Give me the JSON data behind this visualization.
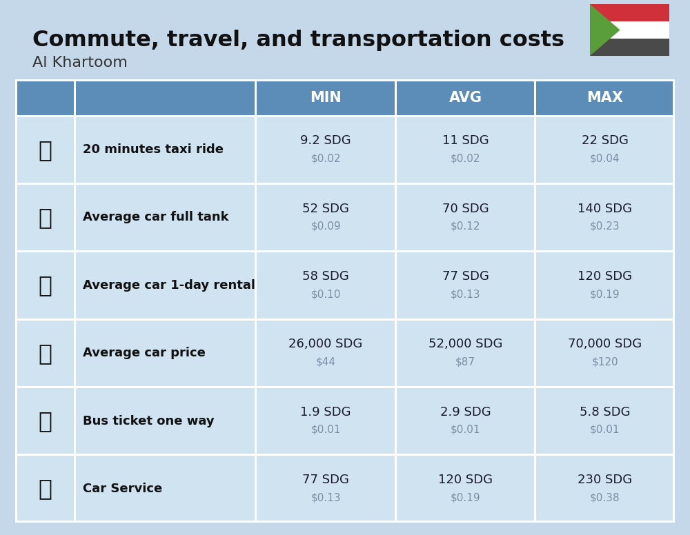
{
  "title": "Commute, travel, and transportation costs",
  "subtitle": "Al Khartoom",
  "bg_color": "#C5D8EA",
  "header_bg": "#5B8DB8",
  "header_text_color": "#FFFFFF",
  "row_bg": "#D0E3F0",
  "cell_border_color": "#FFFFFF",
  "col_headers": [
    "MIN",
    "AVG",
    "MAX"
  ],
  "flag_red": "#D0303A",
  "flag_white": "#FFFFFF",
  "flag_black": "#4A4A4A",
  "flag_green": "#5A9E3A",
  "rows": [
    {
      "label": "20 minutes taxi ride",
      "icon": "🚕",
      "min_sdg": "9.2 SDG",
      "min_usd": "$0.02",
      "avg_sdg": "11 SDG",
      "avg_usd": "$0.02",
      "max_sdg": "22 SDG",
      "max_usd": "$0.04"
    },
    {
      "label": "Average car full tank",
      "icon": "⛽",
      "min_sdg": "52 SDG",
      "min_usd": "$0.09",
      "avg_sdg": "70 SDG",
      "avg_usd": "$0.12",
      "max_sdg": "140 SDG",
      "max_usd": "$0.23"
    },
    {
      "label": "Average car 1-day rental",
      "icon": "🚙",
      "min_sdg": "58 SDG",
      "min_usd": "$0.10",
      "avg_sdg": "77 SDG",
      "avg_usd": "$0.13",
      "max_sdg": "120 SDG",
      "max_usd": "$0.19"
    },
    {
      "label": "Average car price",
      "icon": "🚗",
      "min_sdg": "26,000 SDG",
      "min_usd": "$44",
      "avg_sdg": "52,000 SDG",
      "avg_usd": "$87",
      "max_sdg": "70,000 SDG",
      "max_usd": "$120"
    },
    {
      "label": "Bus ticket one way",
      "icon": "🚌",
      "min_sdg": "1.9 SDG",
      "min_usd": "$0.01",
      "avg_sdg": "2.9 SDG",
      "avg_usd": "$0.01",
      "max_sdg": "5.8 SDG",
      "max_usd": "$0.01"
    },
    {
      "label": "Car Service",
      "icon": "🚗",
      "min_sdg": "77 SDG",
      "min_usd": "$0.13",
      "avg_sdg": "120 SDG",
      "avg_usd": "$0.19",
      "max_sdg": "230 SDG",
      "max_usd": "$0.38"
    }
  ]
}
